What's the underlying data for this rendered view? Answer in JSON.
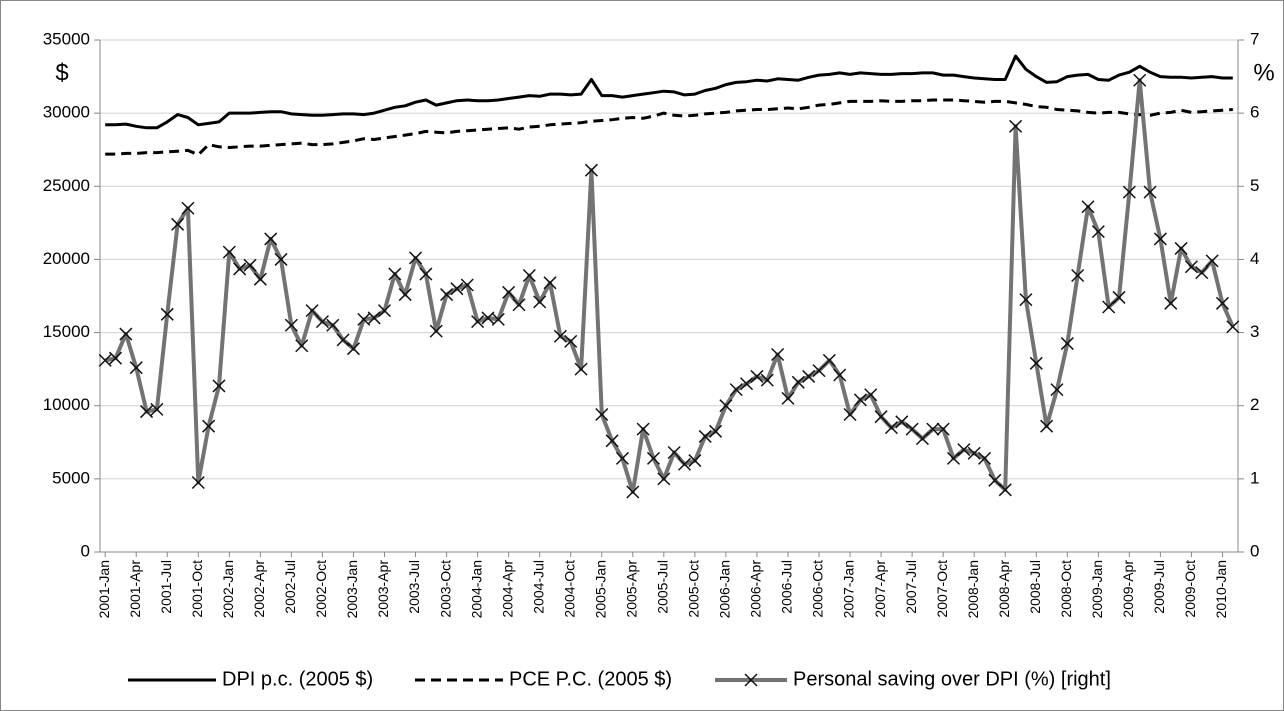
{
  "chart_data": {
    "type": "line",
    "ylabel": "$",
    "y2label": "%",
    "categories": [
      "2001-Jan",
      null,
      null,
      "2001-Apr",
      null,
      null,
      "2001-Jul",
      null,
      null,
      "2001-Oct",
      null,
      null,
      "2002-Jan",
      null,
      null,
      "2002-Apr",
      null,
      null,
      "2002-Jul",
      null,
      null,
      "2002-Oct",
      null,
      null,
      "2003-Jan",
      null,
      null,
      "2003-Apr",
      null,
      null,
      "2003-Jul",
      null,
      null,
      "2003-Oct",
      null,
      null,
      "2004-Jan",
      null,
      null,
      "2004-Apr",
      null,
      null,
      "2004-Jul",
      null,
      null,
      "2004-Oct",
      null,
      null,
      "2005-Jan",
      null,
      null,
      "2005-Apr",
      null,
      null,
      "2005-Jul",
      null,
      null,
      "2005-Oct",
      null,
      null,
      "2006-Jan",
      null,
      null,
      "2006-Apr",
      null,
      null,
      "2006-Jul",
      null,
      null,
      "2006-Oct",
      null,
      null,
      "2007-Jan",
      null,
      null,
      "2007-Apr",
      null,
      null,
      "2007-Jul",
      null,
      null,
      "2007-Oct",
      null,
      null,
      "2008-Jan",
      null,
      null,
      "2008-Apr",
      null,
      null,
      "2008-Jul",
      null,
      null,
      "2008-Oct",
      null,
      null,
      "2009-Jan",
      null,
      null,
      "2009-Apr",
      null,
      null,
      "2009-Jul",
      null,
      null,
      "2009-Oct",
      null,
      null,
      "2010-Jan",
      null
    ],
    "ylim": [
      0,
      35000
    ],
    "yticks": [
      0,
      5000,
      10000,
      15000,
      20000,
      25000,
      30000,
      35000
    ],
    "y2lim": [
      0,
      7
    ],
    "y2ticks": [
      0,
      1,
      2,
      3,
      4,
      5,
      6,
      7
    ],
    "grid": true,
    "legend": "bottom",
    "series": [
      {
        "name": "DPI p.c. (2005 $)",
        "color": "#000000",
        "dash": false,
        "values": [
          29200,
          29200,
          29250,
          29100,
          29000,
          29000,
          29400,
          29900,
          29700,
          29200,
          29300,
          29400,
          30000,
          30000,
          30000,
          30050,
          30100,
          30100,
          29950,
          29900,
          29850,
          29850,
          29900,
          29950,
          29950,
          29900,
          30000,
          30200,
          30400,
          30500,
          30750,
          30900,
          30550,
          30700,
          30850,
          30900,
          30850,
          30850,
          30900,
          31000,
          31100,
          31200,
          31150,
          31300,
          31300,
          31250,
          31300,
          32300,
          31200,
          31200,
          31100,
          31200,
          31300,
          31400,
          31500,
          31450,
          31250,
          31300,
          31550,
          31700,
          31950,
          32100,
          32150,
          32250,
          32200,
          32350,
          32300,
          32250,
          32450,
          32600,
          32650,
          32750,
          32650,
          32750,
          32700,
          32650,
          32650,
          32700,
          32700,
          32750,
          32750,
          32600,
          32600,
          32500,
          32400,
          32350,
          32300,
          32300,
          33900,
          33000,
          32500,
          32100,
          32150,
          32500,
          32600,
          32650,
          32300,
          32250,
          32600,
          32800,
          33200,
          32800,
          32500,
          32450,
          32450,
          32400,
          32450,
          32500,
          32400,
          32400
        ]
      },
      {
        "name": "PCE P.C. (2005 $)",
        "color": "#000000",
        "dash": true,
        "values": [
          27200,
          27200,
          27250,
          27250,
          27300,
          27300,
          27350,
          27400,
          27450,
          27150,
          27850,
          27700,
          27650,
          27700,
          27750,
          27750,
          27800,
          27850,
          27900,
          27950,
          27850,
          27850,
          27900,
          28000,
          28100,
          28250,
          28200,
          28300,
          28400,
          28500,
          28600,
          28750,
          28700,
          28650,
          28750,
          28800,
          28850,
          28900,
          28950,
          29000,
          28900,
          29050,
          29100,
          29200,
          29250,
          29300,
          29350,
          29450,
          29500,
          29550,
          29650,
          29700,
          29650,
          29800,
          30000,
          29850,
          29800,
          29850,
          29950,
          30000,
          30050,
          30150,
          30200,
          30250,
          30250,
          30300,
          30350,
          30300,
          30400,
          30550,
          30600,
          30700,
          30800,
          30800,
          30800,
          30850,
          30800,
          30800,
          30850,
          30850,
          30900,
          30900,
          30900,
          30850,
          30800,
          30750,
          30800,
          30800,
          30700,
          30600,
          30450,
          30400,
          30250,
          30200,
          30150,
          30050,
          30000,
          30050,
          30050,
          29950,
          29900,
          29850,
          30000,
          30050,
          30200,
          30050,
          30100,
          30150,
          30200,
          30250
        ]
      },
      {
        "name": "Personal saving over DPI (%) [right]",
        "color": "#737373",
        "dash": false,
        "marker": "x",
        "axis": "y2",
        "values": [
          2.62,
          2.65,
          2.98,
          2.52,
          1.92,
          1.95,
          3.25,
          4.48,
          4.7,
          0.95,
          1.72,
          2.27,
          4.1,
          3.87,
          3.92,
          3.73,
          4.28,
          4.0,
          3.1,
          2.82,
          3.3,
          3.15,
          3.1,
          2.9,
          2.78,
          3.18,
          3.2,
          3.3,
          3.8,
          3.52,
          4.02,
          3.8,
          3.02,
          3.52,
          3.6,
          3.65,
          3.15,
          3.2,
          3.18,
          3.55,
          3.38,
          3.78,
          3.42,
          3.68,
          2.95,
          2.88,
          2.5,
          5.22,
          1.88,
          1.52,
          1.28,
          0.82,
          1.68,
          1.28,
          1.0,
          1.36,
          1.2,
          1.25,
          1.58,
          1.65,
          2.0,
          2.22,
          2.3,
          2.4,
          2.35,
          2.7,
          2.1,
          2.32,
          2.4,
          2.48,
          2.62,
          2.42,
          1.88,
          2.08,
          2.15,
          1.85,
          1.7,
          1.78,
          1.68,
          1.55,
          1.68,
          1.68,
          1.28,
          1.4,
          1.35,
          1.28,
          0.98,
          0.85,
          5.82,
          3.45,
          2.58,
          1.72,
          2.22,
          2.85,
          3.78,
          4.72,
          4.38,
          3.35,
          3.48,
          4.92,
          6.45,
          4.92,
          4.28,
          3.4,
          4.15,
          3.9,
          3.82,
          3.98,
          3.4,
          3.08
        ]
      }
    ]
  }
}
